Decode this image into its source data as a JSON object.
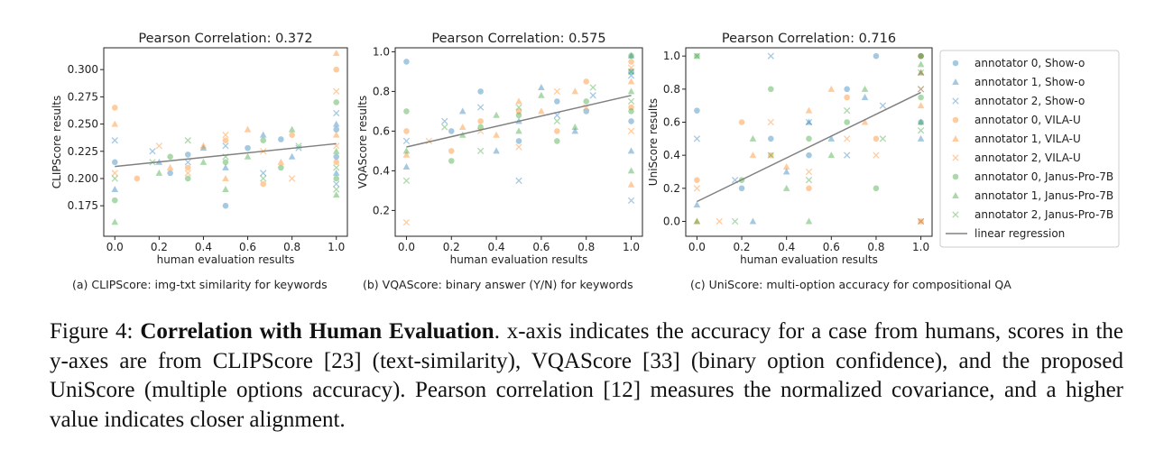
{
  "chart_data": [
    {
      "type": "scatter",
      "title": "Pearson Correlation: 0.372",
      "xlabel": "human evaluation results",
      "ylabel": "CLIPScore results",
      "xlim": [
        -0.05,
        1.05
      ],
      "ylim": [
        0.147,
        0.32
      ],
      "xticks": [
        {
          "value": 0,
          "label": "0.0"
        },
        0.2,
        0.4,
        0.6,
        0.8,
        {
          "value": 1,
          "label": "1.0"
        }
      ],
      "yticks": [
        0.175,
        {
          "value": 0.2,
          "label": "0.200"
        },
        0.225,
        {
          "value": 0.25,
          "label": "0.250"
        },
        0.275,
        {
          "value": 0.3,
          "label": "0.300"
        }
      ],
      "series": [
        {
          "name": "annotator 0, Show-o",
          "color": "#1f77b4",
          "marker": "o",
          "x": [
            0,
            0.25,
            0.33,
            0.5,
            0.6,
            0.75,
            1,
            1
          ],
          "values": [
            0.215,
            0.205,
            0.222,
            0.175,
            0.228,
            0.236,
            0.245,
            0.22
          ]
        },
        {
          "name": "annotator 1, Show-o",
          "color": "#1f77b4",
          "marker": "^",
          "x": [
            0,
            0.2,
            0.4,
            0.5,
            0.67,
            0.8,
            1,
            1
          ],
          "values": [
            0.19,
            0.215,
            0.228,
            0.21,
            0.24,
            0.22,
            0.25,
            0.205
          ]
        },
        {
          "name": "annotator 2, Show-o",
          "color": "#1f77b4",
          "marker": "x",
          "x": [
            0,
            0.17,
            0.33,
            0.5,
            0.67,
            0.83,
            1,
            1
          ],
          "values": [
            0.235,
            0.225,
            0.215,
            0.23,
            0.205,
            0.228,
            0.26,
            0.195
          ]
        },
        {
          "name": "annotator 0, VILA-U",
          "color": "#ff7f0e",
          "marker": "o",
          "x": [
            0,
            0.1,
            0.33,
            0.5,
            0.67,
            0.8,
            1,
            1
          ],
          "values": [
            0.265,
            0.2,
            0.21,
            0.235,
            0.195,
            0.24,
            0.3,
            0.215
          ]
        },
        {
          "name": "annotator 1, VILA-U",
          "color": "#ff7f0e",
          "marker": "^",
          "x": [
            0,
            0.25,
            0.4,
            0.5,
            0.6,
            0.75,
            1,
            1
          ],
          "values": [
            0.25,
            0.21,
            0.23,
            0.2,
            0.245,
            0.215,
            0.315,
            0.24
          ]
        },
        {
          "name": "annotator 2, VILA-U",
          "color": "#ff7f0e",
          "marker": "x",
          "x": [
            0,
            0.2,
            0.33,
            0.5,
            0.67,
            0.8,
            1,
            1
          ],
          "values": [
            0.205,
            0.23,
            0.205,
            0.24,
            0.225,
            0.2,
            0.28,
            0.23
          ]
        },
        {
          "name": "annotator 0, Janus-Pro-7B",
          "color": "#2ca02c",
          "marker": "o",
          "x": [
            0,
            0.25,
            0.33,
            0.5,
            0.67,
            0.75,
            1,
            1
          ],
          "values": [
            0.18,
            0.22,
            0.2,
            0.215,
            0.235,
            0.21,
            0.27,
            0.2
          ]
        },
        {
          "name": "annotator 1, Janus-Pro-7B",
          "color": "#2ca02c",
          "marker": "^",
          "x": [
            0,
            0.2,
            0.4,
            0.5,
            0.6,
            0.8,
            1,
            1
          ],
          "values": [
            0.16,
            0.205,
            0.215,
            0.19,
            0.22,
            0.245,
            0.225,
            0.185
          ]
        },
        {
          "name": "annotator 2, Janus-Pro-7B",
          "color": "#2ca02c",
          "marker": "x",
          "x": [
            0,
            0.17,
            0.33,
            0.5,
            0.67,
            0.83,
            1,
            1
          ],
          "values": [
            0.2,
            0.215,
            0.235,
            0.22,
            0.2,
            0.23,
            0.21,
            0.19
          ]
        }
      ],
      "regression": {
        "name": "linear regression",
        "color": "#808080",
        "x": [
          0,
          1
        ],
        "values": [
          0.211,
          0.232
        ]
      },
      "subcaption": "(a) CLIPScore: img-txt similarity for keywords"
    },
    {
      "type": "scatter",
      "title": "Pearson Correlation: 0.575",
      "xlabel": "human evaluation results",
      "ylabel": "VQAScore results",
      "xlim": [
        -0.05,
        1.05
      ],
      "ylim": [
        0.07,
        1.02
      ],
      "xticks": [
        {
          "value": 0,
          "label": "0.0"
        },
        0.2,
        0.4,
        0.6,
        0.8,
        {
          "value": 1,
          "label": "1.0"
        }
      ],
      "yticks": [
        0.2,
        0.4,
        0.6,
        0.8,
        {
          "value": 1,
          "label": "1.0"
        }
      ],
      "series": [
        {
          "name": "annotator 0, Show-o",
          "color": "#1f77b4",
          "marker": "o",
          "x": [
            0,
            0.2,
            0.33,
            0.5,
            0.67,
            0.8,
            1,
            1
          ],
          "values": [
            0.95,
            0.6,
            0.8,
            0.55,
            0.75,
            0.7,
            0.9,
            0.65
          ]
        },
        {
          "name": "annotator 1, Show-o",
          "color": "#1f77b4",
          "marker": "^",
          "x": [
            0,
            0.25,
            0.4,
            0.5,
            0.6,
            0.75,
            1,
            1
          ],
          "values": [
            0.42,
            0.7,
            0.5,
            0.65,
            0.82,
            0.6,
            0.98,
            0.5
          ]
        },
        {
          "name": "annotator 2, Show-o",
          "color": "#1f77b4",
          "marker": "x",
          "x": [
            0,
            0.17,
            0.33,
            0.5,
            0.67,
            0.83,
            1,
            1
          ],
          "values": [
            0.55,
            0.65,
            0.72,
            0.35,
            0.68,
            0.78,
            0.88,
            0.25
          ]
        },
        {
          "name": "annotator 0, VILA-U",
          "color": "#ff7f0e",
          "marker": "o",
          "x": [
            0,
            0.2,
            0.33,
            0.5,
            0.67,
            0.8,
            1,
            1
          ],
          "values": [
            0.6,
            0.5,
            0.65,
            0.7,
            0.6,
            0.85,
            0.95,
            0.72
          ]
        },
        {
          "name": "annotator 1, VILA-U",
          "color": "#ff7f0e",
          "marker": "^",
          "x": [
            0,
            0.25,
            0.4,
            0.5,
            0.6,
            0.75,
            1,
            1
          ],
          "values": [
            0.48,
            0.62,
            0.58,
            0.75,
            0.7,
            0.8,
            0.33,
            0.85
          ]
        },
        {
          "name": "annotator 2, VILA-U",
          "color": "#ff7f0e",
          "marker": "x",
          "x": [
            0,
            0.1,
            0.33,
            0.5,
            0.67,
            0.8,
            1,
            1
          ],
          "values": [
            0.14,
            0.55,
            0.6,
            0.52,
            0.8,
            0.72,
            0.92,
            0.6
          ]
        },
        {
          "name": "annotator 0, Janus-Pro-7B",
          "color": "#2ca02c",
          "marker": "o",
          "x": [
            0,
            0.2,
            0.33,
            0.5,
            0.67,
            0.8,
            1,
            1
          ],
          "values": [
            0.7,
            0.45,
            0.62,
            0.68,
            0.55,
            0.75,
            0.98,
            0.7
          ]
        },
        {
          "name": "annotator 1, Janus-Pro-7B",
          "color": "#2ca02c",
          "marker": "^",
          "x": [
            0,
            0.25,
            0.4,
            0.5,
            0.6,
            0.75,
            1,
            1
          ],
          "values": [
            0.5,
            0.58,
            0.68,
            0.6,
            0.78,
            0.62,
            0.4,
            0.8
          ]
        },
        {
          "name": "annotator 2, Janus-Pro-7B",
          "color": "#2ca02c",
          "marker": "x",
          "x": [
            0,
            0.17,
            0.33,
            0.5,
            0.67,
            0.83,
            1,
            1
          ],
          "values": [
            0.35,
            0.62,
            0.5,
            0.72,
            0.65,
            0.82,
            0.9,
            0.75
          ]
        }
      ],
      "regression": {
        "name": "linear regression",
        "color": "#808080",
        "x": [
          0,
          1
        ],
        "values": [
          0.52,
          0.78
        ]
      },
      "subcaption": "(b) VQAScore: binary answer (Y/N) for keywords"
    },
    {
      "type": "scatter",
      "title": "Pearson Correlation: 0.716",
      "xlabel": "human evaluation results",
      "ylabel": "UniScore results",
      "xlim": [
        -0.05,
        1.05
      ],
      "ylim": [
        -0.09,
        1.05
      ],
      "legend": "outside right",
      "xticks": [
        {
          "value": 0,
          "label": "0.0"
        },
        0.2,
        0.4,
        0.6,
        0.8,
        {
          "value": 1,
          "label": "1.0"
        }
      ],
      "yticks": [
        {
          "value": 0,
          "label": "0.0"
        },
        0.2,
        0.4,
        0.6,
        0.8,
        {
          "value": 1,
          "label": "1.0"
        }
      ],
      "series": [
        {
          "name": "annotator 0, Show-o",
          "color": "#1f77b4",
          "marker": "o",
          "x": [
            0,
            0.2,
            0.33,
            0.5,
            0.67,
            0.8,
            1,
            1
          ],
          "values": [
            0.67,
            0.2,
            0.5,
            0.4,
            0.8,
            1.0,
            1.0,
            0.6
          ]
        },
        {
          "name": "annotator 1, Show-o",
          "color": "#1f77b4",
          "marker": "^",
          "x": [
            0,
            0.25,
            0.4,
            0.5,
            0.6,
            0.75,
            1,
            1
          ],
          "values": [
            0.1,
            0.0,
            0.3,
            0.6,
            0.5,
            0.75,
            0.9,
            0.5
          ]
        },
        {
          "name": "annotator 2, Show-o",
          "color": "#1f77b4",
          "marker": "x",
          "x": [
            0,
            0.17,
            0.33,
            0.5,
            0.67,
            0.83,
            1,
            1
          ],
          "values": [
            0.5,
            0.25,
            1.0,
            0.6,
            0.4,
            0.7,
            0.8,
            0.0
          ]
        },
        {
          "name": "annotator 0, VILA-U",
          "color": "#ff7f0e",
          "marker": "o",
          "x": [
            0,
            0.2,
            0.33,
            0.5,
            0.67,
            0.8,
            1,
            1
          ],
          "values": [
            0.25,
            0.6,
            0.4,
            0.2,
            0.75,
            0.5,
            1.0,
            0.0
          ]
        },
        {
          "name": "annotator 1, VILA-U",
          "color": "#ff7f0e",
          "marker": "^",
          "x": [
            0,
            0.25,
            0.4,
            0.5,
            0.6,
            0.75,
            1,
            1
          ],
          "values": [
            0.0,
            0.4,
            0.33,
            0.67,
            0.8,
            0.6,
            0.9,
            0.7
          ]
        },
        {
          "name": "annotator 2, VILA-U",
          "color": "#ff7f0e",
          "marker": "x",
          "x": [
            0,
            0.1,
            0.33,
            0.5,
            0.67,
            0.8,
            1,
            1
          ],
          "values": [
            0.2,
            0.0,
            0.6,
            0.3,
            0.5,
            0.4,
            0.0,
            0.8
          ]
        },
        {
          "name": "annotator 0, Janus-Pro-7B",
          "color": "#2ca02c",
          "marker": "o",
          "x": [
            0,
            0.2,
            0.33,
            0.5,
            0.67,
            0.8,
            1,
            1
          ],
          "values": [
            1.0,
            0.25,
            0.8,
            0.5,
            0.6,
            0.2,
            1.0,
            0.75
          ]
        },
        {
          "name": "annotator 1, Janus-Pro-7B",
          "color": "#2ca02c",
          "marker": "^",
          "x": [
            0,
            0.25,
            0.4,
            0.5,
            0.6,
            0.75,
            1,
            1
          ],
          "values": [
            0.0,
            0.5,
            0.2,
            0.0,
            0.4,
            0.8,
            0.6,
            0.95
          ]
        },
        {
          "name": "annotator 2, Janus-Pro-7B",
          "color": "#2ca02c",
          "marker": "x",
          "x": [
            0,
            0.17,
            0.33,
            0.5,
            0.67,
            0.83,
            1,
            1
          ],
          "values": [
            1.0,
            0.0,
            0.4,
            0.25,
            0.67,
            0.5,
            0.9,
            0.55
          ]
        }
      ],
      "regression": {
        "name": "linear regression",
        "color": "#808080",
        "x": [
          0,
          1
        ],
        "values": [
          0.12,
          0.78
        ]
      },
      "subcaption": "(c) UniScore: multi-option accuracy for compositional QA"
    }
  ],
  "caption": {
    "label": "Figure 4:",
    "title": "Correlation with Human Evaluation",
    "text": ". x-axis indicates the accuracy for a case from humans, scores in the y-axes are from CLIPScore [23] (text-similarity), VQAScore [33] (binary option confidence), and the proposed UniScore (multiple options accuracy). Pearson correlation [12] measures the normalized covariance, and a higher value indicates closer alignment."
  }
}
